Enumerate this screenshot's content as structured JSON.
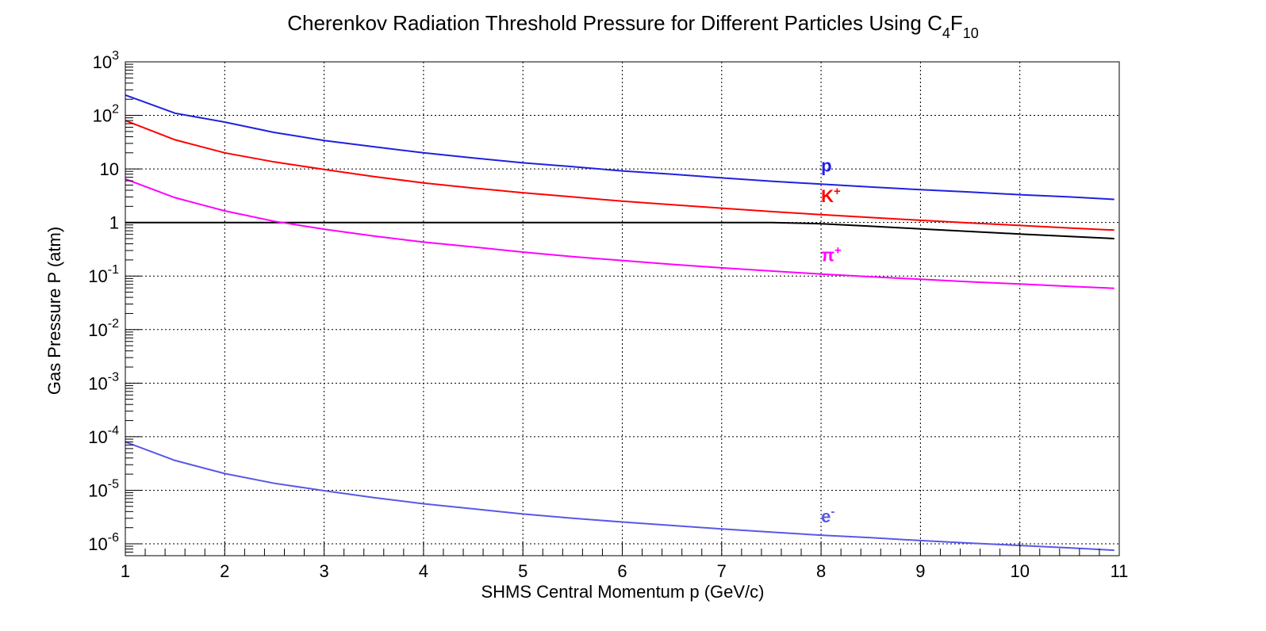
{
  "chart_data": {
    "type": "line",
    "title": {
      "text": "Cherenkov Radiation Threshold Pressure for Different Particles Using C",
      "sub1": "4",
      "mid": "F",
      "sub2": "10"
    },
    "xlabel": "SHMS Central Momentum p (GeV/c)",
    "ylabel": "Gas Pressure P (atm)",
    "xlim": [
      1,
      11
    ],
    "ylim": [
      6e-07,
      1000
    ],
    "yscale": "log",
    "grid": true,
    "x_ticks": [
      "1",
      "2",
      "3",
      "4",
      "5",
      "6",
      "7",
      "8",
      "9",
      "10",
      "11"
    ],
    "y_ticks": [
      {
        "value": 1e-06,
        "base": "10",
        "exp": "-6"
      },
      {
        "value": 1e-05,
        "base": "10",
        "exp": "-5"
      },
      {
        "value": 0.0001,
        "base": "10",
        "exp": "-4"
      },
      {
        "value": 0.001,
        "base": "10",
        "exp": "-3"
      },
      {
        "value": 0.01,
        "base": "10",
        "exp": "-2"
      },
      {
        "value": 0.1,
        "base": "10",
        "exp": "-1"
      },
      {
        "value": 1,
        "base": "1",
        "exp": ""
      },
      {
        "value": 10,
        "base": "10",
        "exp": ""
      },
      {
        "value": 100,
        "base": "10",
        "exp": "2"
      },
      {
        "value": 1000,
        "base": "10",
        "exp": "3"
      }
    ],
    "x": [
      1,
      1.5,
      2,
      2.5,
      3,
      3.5,
      4,
      4.5,
      5,
      5.5,
      6,
      6.5,
      7,
      7.5,
      8,
      8.5,
      9,
      9.5,
      10,
      10.5,
      10.95
    ],
    "series": [
      {
        "name": "p",
        "label_main": "p",
        "label_sup": "",
        "color": "#2020e0",
        "values": [
          240,
          110,
          75,
          48,
          34,
          26,
          20,
          16,
          13,
          11,
          9.2,
          8.0,
          6.8,
          5.9,
          5.2,
          4.6,
          4.1,
          3.7,
          3.3,
          3.0,
          2.7
        ]
      },
      {
        "name": "K+",
        "label_main": "K",
        "label_sup": "+",
        "color": "#ff0000",
        "values": [
          80,
          35,
          20,
          13.5,
          9.8,
          7.2,
          5.5,
          4.4,
          3.6,
          3.0,
          2.5,
          2.15,
          1.85,
          1.6,
          1.4,
          1.24,
          1.1,
          0.98,
          0.88,
          0.79,
          0.72
        ]
      },
      {
        "name": "π+",
        "label_main": "π",
        "label_sup": "+",
        "color": "#ff00ff",
        "values": [
          6.5,
          2.9,
          1.65,
          1.05,
          0.75,
          0.56,
          0.43,
          0.35,
          0.28,
          0.23,
          0.195,
          0.165,
          0.142,
          0.124,
          0.109,
          0.097,
          0.087,
          0.078,
          0.071,
          0.064,
          0.059
        ]
      },
      {
        "name": "e-",
        "label_main": "e",
        "label_sup": "-",
        "color": "#5858e8",
        "values": [
          8e-05,
          3.6e-05,
          2.05e-05,
          1.35e-05,
          9.8e-06,
          7.3e-06,
          5.6e-06,
          4.5e-06,
          3.6e-06,
          3e-06,
          2.55e-06,
          2.2e-06,
          1.9e-06,
          1.65e-06,
          1.45e-06,
          1.3e-06,
          1.15e-06,
          1.03e-06,
          9.3e-07,
          8.4e-07,
          7.6e-07
        ]
      }
    ],
    "limit_line": {
      "color": "#000000",
      "x": [
        1,
        7.5,
        8,
        8.5,
        9,
        9.5,
        10,
        10.5,
        10.95
      ],
      "values": [
        1,
        1,
        0.95,
        0.85,
        0.76,
        0.68,
        0.61,
        0.55,
        0.5
      ]
    }
  }
}
